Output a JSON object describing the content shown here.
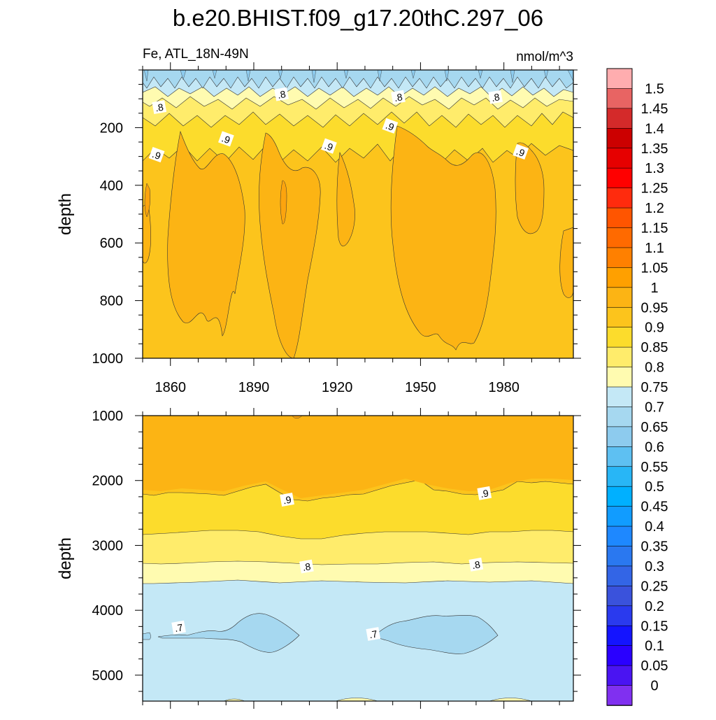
{
  "chart_data": {
    "type": "contour",
    "title": "b.e20.BHIST.f09_g17.20thC.297_06",
    "variable_label": "Fe, ATL_18N-49N",
    "units_label": "nmol/m^3",
    "x": {
      "label": "",
      "range": [
        1850,
        2005
      ],
      "tick_values": [
        1860,
        1890,
        1920,
        1950,
        1980
      ],
      "tick_labels": [
        "1860",
        "1890",
        "1920",
        "1950",
        "1980"
      ]
    },
    "panels": [
      {
        "name": "upper-ocean",
        "ylabel": "depth",
        "ylim": [
          0,
          1000
        ],
        "y_tick_values": [
          200,
          400,
          600,
          800,
          1000
        ],
        "y_tick_labels": [
          "200",
          "400",
          "600",
          "800",
          "1000"
        ],
        "contour_labels": [
          {
            "text": ".8",
            "x": 1856,
            "y": 130
          },
          {
            "text": ".8",
            "x": 1900,
            "y": 85
          },
          {
            "text": ".8",
            "x": 1942,
            "y": 95
          },
          {
            "text": ".8",
            "x": 1977,
            "y": 95
          },
          {
            "text": ".9",
            "x": 1855,
            "y": 295
          },
          {
            "text": ".9",
            "x": 1880,
            "y": 240
          },
          {
            "text": ".9",
            "x": 1917,
            "y": 265
          },
          {
            "text": ".9",
            "x": 1939,
            "y": 195
          },
          {
            "text": ".9",
            "x": 1986,
            "y": 285
          }
        ]
      },
      {
        "name": "deep-ocean",
        "ylabel": "depth",
        "ylim": [
          1000,
          5400
        ],
        "y_tick_values": [
          1000,
          2000,
          3000,
          4000,
          5000
        ],
        "y_tick_labels": [
          "1000",
          "2000",
          "3000",
          "4000",
          "5000"
        ],
        "contour_labels": [
          {
            "text": ".9",
            "x": 1902,
            "y": 2300
          },
          {
            "text": ".9",
            "x": 1973,
            "y": 2200
          },
          {
            "text": ".8",
            "x": 1909,
            "y": 3330
          },
          {
            "text": ".8",
            "x": 1970,
            "y": 3300
          },
          {
            "text": ".7",
            "x": 1863,
            "y": 4270
          },
          {
            "text": ".7",
            "x": 1933,
            "y": 4370
          }
        ]
      }
    ],
    "colorbar": {
      "labels": [
        "1.5",
        "1.45",
        "1.4",
        "1.35",
        "1.3",
        "1.25",
        "1.2",
        "1.15",
        "1.1",
        "1.05",
        "1",
        "0.95",
        "0.9",
        "0.85",
        "0.8",
        "0.75",
        "0.7",
        "0.65",
        "0.6",
        "0.55",
        "0.5",
        "0.45",
        "0.4",
        "0.35",
        "0.3",
        "0.25",
        "0.2",
        "0.15",
        "0.1",
        "0.05",
        "0"
      ],
      "colors": [
        "#ffadaf",
        "#e86463",
        "#d42a2a",
        "#cc0000",
        "#e60000",
        "#ff0000",
        "#ff2b0d",
        "#ff5500",
        "#ff6a00",
        "#ff8000",
        "#ffa000",
        "#fcb414",
        "#fcc41c",
        "#fcdc2c",
        "#ffec6b",
        "#fffbb0",
        "#c4e8f6",
        "#a6d8f0",
        "#8dcbee",
        "#5ec0f2",
        "#28b6f6",
        "#00b0ff",
        "#119cff",
        "#1e88ff",
        "#2a78f0",
        "#3365e6",
        "#3a52dc",
        "#2a3aee",
        "#1414ff",
        "#2a00ff",
        "#4a14f2",
        "#8030f0"
      ]
    },
    "fill_colors": {
      "band_0.65_0.7": "#a6d8f0",
      "band_0.7_0.75": "#c4e8f6",
      "band_0.75_0.8": "#fffbb0",
      "band_0.8_0.85": "#ffec6b",
      "band_0.85_0.9": "#fcdc2c",
      "band_0.9_0.95": "#fcc41c",
      "band_0.95_1": "#fcb414"
    }
  }
}
